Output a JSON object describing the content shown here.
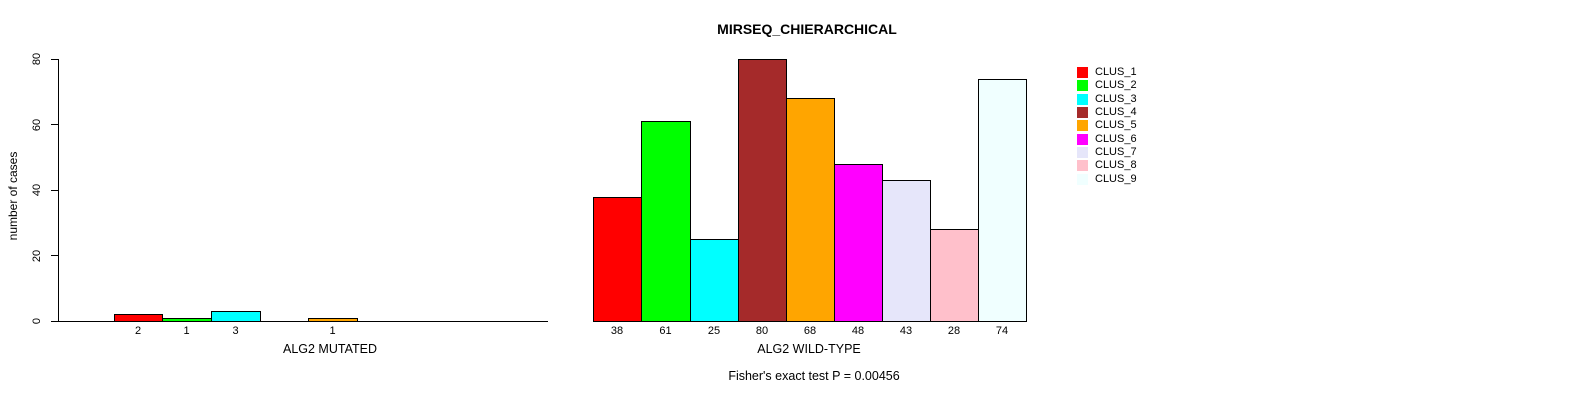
{
  "chart_data": {
    "type": "bar",
    "title": "MIRSEQ_CHIERARCHICAL",
    "ylabel": "number of cases",
    "ylim": [
      0,
      80
    ],
    "yticks": [
      0,
      20,
      40,
      60,
      80
    ],
    "grid": false,
    "legend_position": "right",
    "annotation": "Fisher's exact test P = 0.00456",
    "categories": [
      "CLUS_1",
      "CLUS_2",
      "CLUS_3",
      "CLUS_4",
      "CLUS_5",
      "CLUS_6",
      "CLUS_7",
      "CLUS_8",
      "CLUS_9"
    ],
    "colors": [
      "#FF0000",
      "#00FF00",
      "#00FFFF",
      "#A52A2A",
      "#FFA500",
      "#FF00FF",
      "#E6E6FA",
      "#FFC0CB",
      "#F0FFFF"
    ],
    "groups": [
      {
        "label": "ALG2 MUTATED",
        "values": [
          2,
          1,
          3,
          0,
          1,
          0,
          0,
          0,
          0
        ],
        "bar_labels": [
          "2",
          "1",
          "3",
          "",
          "1",
          "",
          "",
          "",
          ""
        ]
      },
      {
        "label": "ALG2 WILD-TYPE",
        "values": [
          38,
          61,
          25,
          80,
          68,
          48,
          43,
          28,
          74
        ],
        "bar_labels": [
          "38",
          "61",
          "25",
          "80",
          "68",
          "48",
          "43",
          "28",
          "74"
        ]
      }
    ]
  }
}
